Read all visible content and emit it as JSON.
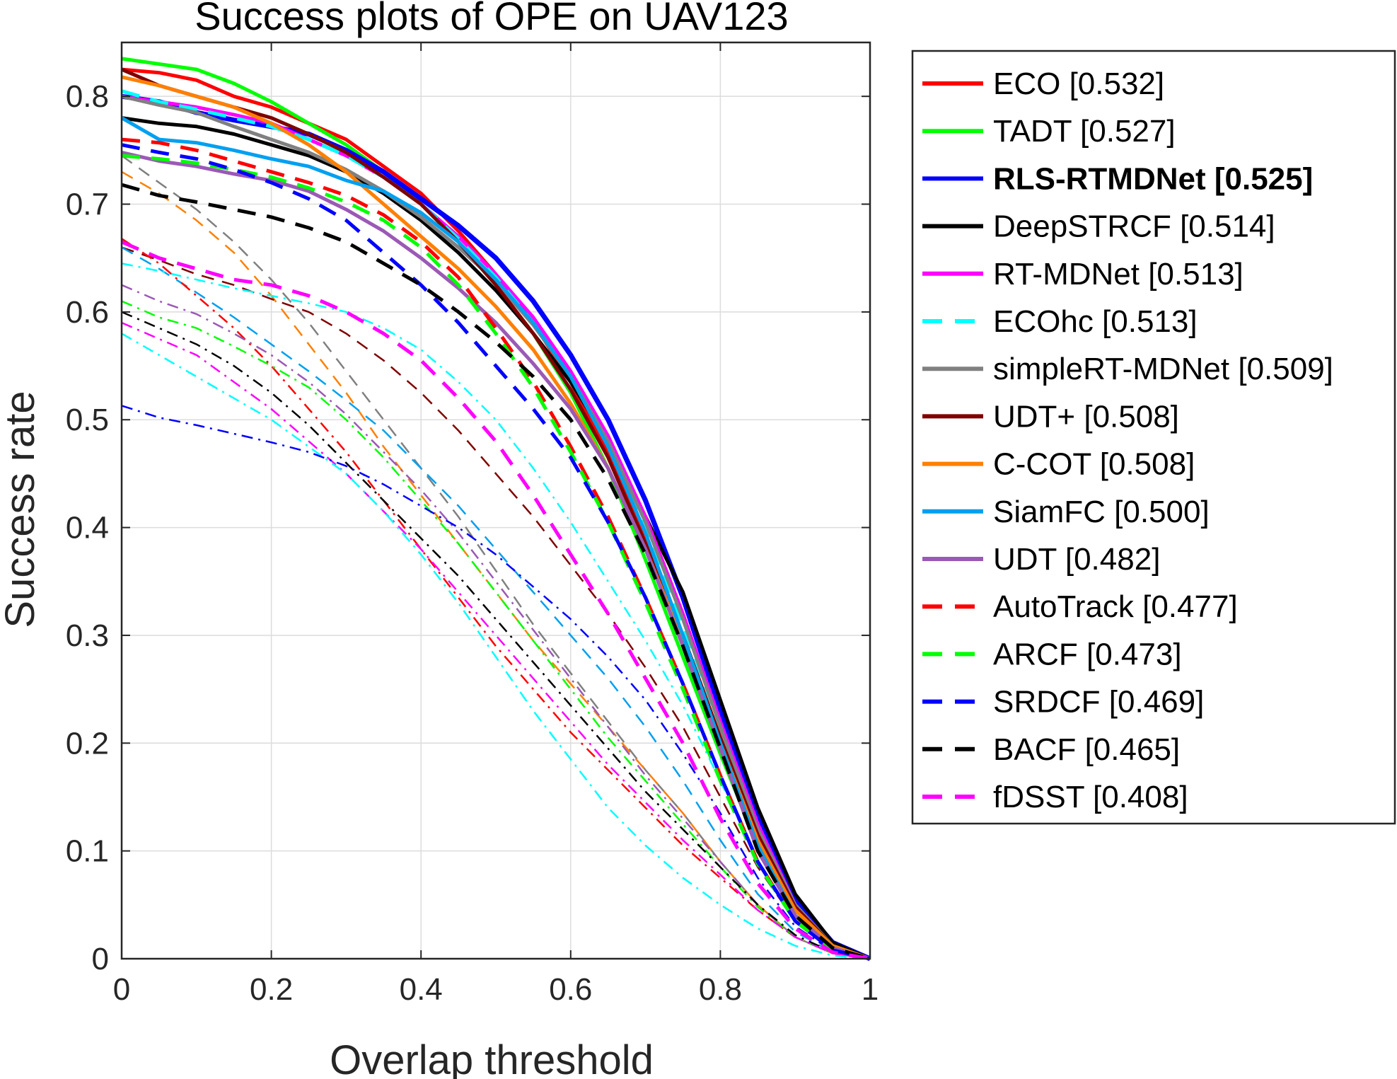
{
  "chart_data": {
    "type": "line",
    "title": "Success plots of OPE on UAV123",
    "xlabel": "Overlap threshold",
    "ylabel": "Success rate",
    "xlim": [
      0,
      1
    ],
    "ylim": [
      0,
      0.85
    ],
    "xticks": [
      0,
      0.2,
      0.4,
      0.6,
      0.8,
      1
    ],
    "xtick_labels": [
      "0",
      "0.2",
      "0.4",
      "0.6",
      "0.8",
      "1"
    ],
    "yticks": [
      0,
      0.1,
      0.2,
      0.3,
      0.4,
      0.5,
      0.6,
      0.7,
      0.8
    ],
    "ytick_labels": [
      "0",
      "0.1",
      "0.2",
      "0.3",
      "0.4",
      "0.5",
      "0.6",
      "0.7",
      "0.8"
    ],
    "grid": true,
    "legend_position": "outside-right",
    "x": [
      0,
      0.05,
      0.1,
      0.15,
      0.2,
      0.25,
      0.3,
      0.35,
      0.4,
      0.45,
      0.5,
      0.55,
      0.6,
      0.65,
      0.7,
      0.75,
      0.8,
      0.85,
      0.9,
      0.95,
      1
    ],
    "series": [
      {
        "name": "ECO [0.532]",
        "color": "#ff0000",
        "style": "solid",
        "width": 5,
        "bold": false,
        "values": [
          0.825,
          0.822,
          0.815,
          0.8,
          0.79,
          0.775,
          0.76,
          0.735,
          0.71,
          0.675,
          0.635,
          0.59,
          0.535,
          0.47,
          0.39,
          0.3,
          0.205,
          0.115,
          0.05,
          0.015,
          0
        ]
      },
      {
        "name": "TADT [0.527]",
        "color": "#00ff00",
        "style": "solid",
        "width": 5,
        "bold": false,
        "values": [
          0.835,
          0.83,
          0.825,
          0.812,
          0.795,
          0.775,
          0.755,
          0.73,
          0.7,
          0.665,
          0.625,
          0.58,
          0.525,
          0.455,
          0.37,
          0.28,
          0.19,
          0.105,
          0.045,
          0.012,
          0
        ]
      },
      {
        "name": "RLS-RTMDNet [0.525]",
        "color": "#0000ff",
        "style": "solid",
        "width": 7,
        "bold": true,
        "values": [
          0.8,
          0.795,
          0.785,
          0.778,
          0.772,
          0.765,
          0.75,
          0.73,
          0.705,
          0.68,
          0.65,
          0.61,
          0.56,
          0.5,
          0.425,
          0.335,
          0.23,
          0.13,
          0.055,
          0.015,
          0
        ]
      },
      {
        "name": "DeepSTRCF [0.514]",
        "color": "#000000",
        "style": "solid",
        "width": 5,
        "bold": false,
        "values": [
          0.78,
          0.775,
          0.772,
          0.765,
          0.755,
          0.745,
          0.73,
          0.71,
          0.685,
          0.655,
          0.62,
          0.58,
          0.535,
          0.48,
          0.41,
          0.34,
          0.24,
          0.14,
          0.06,
          0.015,
          0
        ]
      },
      {
        "name": "RT-MDNet [0.513]",
        "color": "#ff00ff",
        "style": "solid",
        "width": 5,
        "bold": false,
        "values": [
          0.8,
          0.795,
          0.79,
          0.783,
          0.775,
          0.76,
          0.745,
          0.725,
          0.7,
          0.67,
          0.635,
          0.595,
          0.545,
          0.485,
          0.41,
          0.32,
          0.22,
          0.125,
          0.05,
          0.012,
          0
        ]
      },
      {
        "name": "ECOhc [0.513]",
        "color": "#00ffff",
        "style": "dashed",
        "width": 5,
        "bold": false,
        "values": [
          0.805,
          0.795,
          0.788,
          0.78,
          0.772,
          0.76,
          0.745,
          0.725,
          0.7,
          0.668,
          0.632,
          0.59,
          0.54,
          0.478,
          0.4,
          0.31,
          0.215,
          0.12,
          0.05,
          0.012,
          0
        ]
      },
      {
        "name": "simpleRT-MDNet [0.509]",
        "color": "#808080",
        "style": "solid",
        "width": 5,
        "bold": false,
        "values": [
          0.8,
          0.792,
          0.785,
          0.772,
          0.76,
          0.748,
          0.732,
          0.712,
          0.688,
          0.66,
          0.628,
          0.588,
          0.54,
          0.48,
          0.405,
          0.315,
          0.215,
          0.12,
          0.05,
          0.012,
          0
        ]
      },
      {
        "name": "UDT+ [0.508]",
        "color": "#800000",
        "style": "solid",
        "width": 5,
        "bold": false,
        "values": [
          0.825,
          0.81,
          0.8,
          0.79,
          0.78,
          0.765,
          0.748,
          0.725,
          0.7,
          0.665,
          0.625,
          0.58,
          0.528,
          0.465,
          0.385,
          0.3,
          0.205,
          0.115,
          0.048,
          0.012,
          0
        ]
      },
      {
        "name": "C-COT [0.508]",
        "color": "#ff8000",
        "style": "solid",
        "width": 5,
        "bold": false,
        "values": [
          0.818,
          0.81,
          0.8,
          0.79,
          0.775,
          0.755,
          0.73,
          0.7,
          0.67,
          0.64,
          0.605,
          0.565,
          0.515,
          0.455,
          0.38,
          0.295,
          0.2,
          0.11,
          0.045,
          0.012,
          0
        ]
      },
      {
        "name": "SiamFC [0.500]",
        "color": "#00a0f0",
        "style": "solid",
        "width": 5,
        "bold": false,
        "values": [
          0.78,
          0.76,
          0.757,
          0.75,
          0.742,
          0.735,
          0.722,
          0.712,
          0.692,
          0.665,
          0.63,
          0.59,
          0.54,
          0.475,
          0.395,
          0.3,
          0.2,
          0.105,
          0.04,
          0.01,
          0
        ]
      },
      {
        "name": "UDT [0.482]",
        "color": "#9b59b6",
        "style": "solid",
        "width": 5,
        "bold": false,
        "values": [
          0.748,
          0.74,
          0.735,
          0.728,
          0.722,
          0.712,
          0.695,
          0.675,
          0.65,
          0.622,
          0.59,
          0.552,
          0.51,
          0.455,
          0.38,
          0.29,
          0.195,
          0.1,
          0.04,
          0.01,
          0
        ]
      },
      {
        "name": "AutoTrack [0.477]",
        "color": "#ff0000",
        "style": "dashed",
        "width": 5,
        "bold": false,
        "values": [
          0.76,
          0.757,
          0.75,
          0.74,
          0.73,
          0.72,
          0.708,
          0.69,
          0.665,
          0.632,
          0.585,
          0.535,
          0.475,
          0.41,
          0.335,
          0.255,
          0.17,
          0.09,
          0.035,
          0.008,
          0
        ]
      },
      {
        "name": "ARCF [0.473]",
        "color": "#00ff00",
        "style": "dashed",
        "width": 5,
        "bold": false,
        "values": [
          0.745,
          0.742,
          0.738,
          0.732,
          0.725,
          0.715,
          0.702,
          0.685,
          0.66,
          0.625,
          0.58,
          0.53,
          0.47,
          0.405,
          0.33,
          0.25,
          0.165,
          0.088,
          0.035,
          0.008,
          0
        ]
      },
      {
        "name": "SRDCF [0.469]",
        "color": "#0000ff",
        "style": "dashed",
        "width": 5,
        "bold": false,
        "values": [
          0.755,
          0.748,
          0.742,
          0.732,
          0.72,
          0.705,
          0.685,
          0.655,
          0.625,
          0.59,
          0.55,
          0.51,
          0.465,
          0.405,
          0.335,
          0.255,
          0.17,
          0.09,
          0.035,
          0.008,
          0
        ]
      },
      {
        "name": "BACF [0.465]",
        "color": "#000000",
        "style": "dashed",
        "width": 5,
        "bold": false,
        "values": [
          0.718,
          0.708,
          0.702,
          0.695,
          0.688,
          0.678,
          0.665,
          0.645,
          0.625,
          0.6,
          0.572,
          0.54,
          0.5,
          0.445,
          0.375,
          0.29,
          0.195,
          0.1,
          0.04,
          0.01,
          0
        ]
      },
      {
        "name": "fDSST [0.408]",
        "color": "#ff00ff",
        "style": "dashed",
        "width": 5,
        "bold": false,
        "values": [
          0.665,
          0.65,
          0.64,
          0.63,
          0.625,
          0.615,
          0.6,
          0.58,
          0.555,
          0.52,
          0.48,
          0.43,
          0.375,
          0.32,
          0.26,
          0.2,
          0.13,
          0.07,
          0.028,
          0.006,
          0
        ]
      },
      {
        "name": "",
        "color": "#808080",
        "style": "thin-dashed",
        "width": 2.5,
        "bold": false,
        "values": [
          0.745,
          0.72,
          0.695,
          0.665,
          0.63,
          0.59,
          0.545,
          0.5,
          0.455,
          0.41,
          0.36,
          0.31,
          0.265,
          0.22,
          0.175,
          0.135,
          0.09,
          0.05,
          0.02,
          0.005,
          0
        ]
      },
      {
        "name": "",
        "color": "#ff8000",
        "style": "thin-dashed",
        "width": 2.5,
        "bold": false,
        "values": [
          0.73,
          0.71,
          0.685,
          0.655,
          0.615,
          0.57,
          0.525,
          0.475,
          0.43,
          0.385,
          0.34,
          0.295,
          0.255,
          0.215,
          0.175,
          0.135,
          0.09,
          0.05,
          0.02,
          0.005,
          0
        ]
      },
      {
        "name": "",
        "color": "#800000",
        "style": "thin-dashed",
        "width": 2.5,
        "bold": false,
        "values": [
          0.66,
          0.648,
          0.635,
          0.625,
          0.612,
          0.6,
          0.58,
          0.555,
          0.525,
          0.49,
          0.45,
          0.41,
          0.365,
          0.32,
          0.27,
          0.215,
          0.15,
          0.085,
          0.035,
          0.008,
          0
        ]
      },
      {
        "name": "",
        "color": "#00a0f0",
        "style": "thin-dashed",
        "width": 2.5,
        "bold": false,
        "values": [
          0.66,
          0.64,
          0.618,
          0.595,
          0.57,
          0.545,
          0.518,
          0.49,
          0.455,
          0.42,
          0.38,
          0.34,
          0.3,
          0.26,
          0.215,
          0.165,
          0.11,
          0.06,
          0.025,
          0.006,
          0
        ]
      },
      {
        "name": "",
        "color": "#00ffff",
        "style": "thin-dashdot",
        "width": 2.5,
        "bold": false,
        "values": [
          0.645,
          0.638,
          0.63,
          0.622,
          0.615,
          0.608,
          0.6,
          0.585,
          0.565,
          0.535,
          0.5,
          0.455,
          0.405,
          0.35,
          0.295,
          0.235,
          0.165,
          0.09,
          0.035,
          0.008,
          0
        ]
      },
      {
        "name": "",
        "color": "#ff0000",
        "style": "thin-dashdot",
        "width": 2.5,
        "bold": false,
        "values": [
          0.668,
          0.645,
          0.615,
          0.585,
          0.55,
          0.51,
          0.47,
          0.425,
          0.38,
          0.335,
          0.29,
          0.25,
          0.21,
          0.175,
          0.14,
          0.105,
          0.075,
          0.045,
          0.02,
          0.005,
          0
        ]
      },
      {
        "name": "",
        "color": "#9b59b6",
        "style": "thin-dashdot",
        "width": 2.5,
        "bold": false,
        "values": [
          0.625,
          0.61,
          0.598,
          0.58,
          0.56,
          0.535,
          0.505,
          0.47,
          0.435,
          0.395,
          0.35,
          0.305,
          0.26,
          0.215,
          0.17,
          0.13,
          0.09,
          0.05,
          0.02,
          0.005,
          0
        ]
      },
      {
        "name": "",
        "color": "#00ff00",
        "style": "thin-dashdot",
        "width": 2.5,
        "bold": false,
        "values": [
          0.61,
          0.595,
          0.585,
          0.568,
          0.55,
          0.53,
          0.5,
          0.465,
          0.425,
          0.385,
          0.34,
          0.295,
          0.25,
          0.205,
          0.165,
          0.125,
          0.085,
          0.048,
          0.02,
          0.005,
          0
        ]
      },
      {
        "name": "",
        "color": "#000000",
        "style": "thin-dashdot",
        "width": 2.5,
        "bold": false,
        "values": [
          0.6,
          0.585,
          0.57,
          0.55,
          0.525,
          0.495,
          0.46,
          0.425,
          0.39,
          0.355,
          0.315,
          0.275,
          0.235,
          0.195,
          0.155,
          0.12,
          0.085,
          0.05,
          0.022,
          0.006,
          0
        ]
      },
      {
        "name": "",
        "color": "#ff00ff",
        "style": "thin-dashdot",
        "width": 2.5,
        "bold": false,
        "values": [
          0.59,
          0.575,
          0.56,
          0.535,
          0.51,
          0.48,
          0.45,
          0.415,
          0.38,
          0.34,
          0.3,
          0.26,
          0.22,
          0.18,
          0.145,
          0.11,
          0.078,
          0.045,
          0.02,
          0.005,
          0
        ]
      },
      {
        "name": "",
        "color": "#00ffff",
        "style": "thin-dashdot",
        "width": 2.5,
        "bold": false,
        "values": [
          0.58,
          0.56,
          0.54,
          0.52,
          0.5,
          0.475,
          0.45,
          0.415,
          0.375,
          0.33,
          0.28,
          0.23,
          0.185,
          0.14,
          0.105,
          0.075,
          0.05,
          0.028,
          0.012,
          0.003,
          0
        ]
      },
      {
        "name": "",
        "color": "#0000ff",
        "style": "thin-dashdot",
        "width": 2.5,
        "bold": false,
        "values": [
          0.513,
          0.502,
          0.495,
          0.487,
          0.479,
          0.47,
          0.457,
          0.44,
          0.42,
          0.4,
          0.375,
          0.345,
          0.315,
          0.28,
          0.24,
          0.19,
          0.135,
          0.075,
          0.03,
          0.007,
          0
        ]
      }
    ]
  }
}
